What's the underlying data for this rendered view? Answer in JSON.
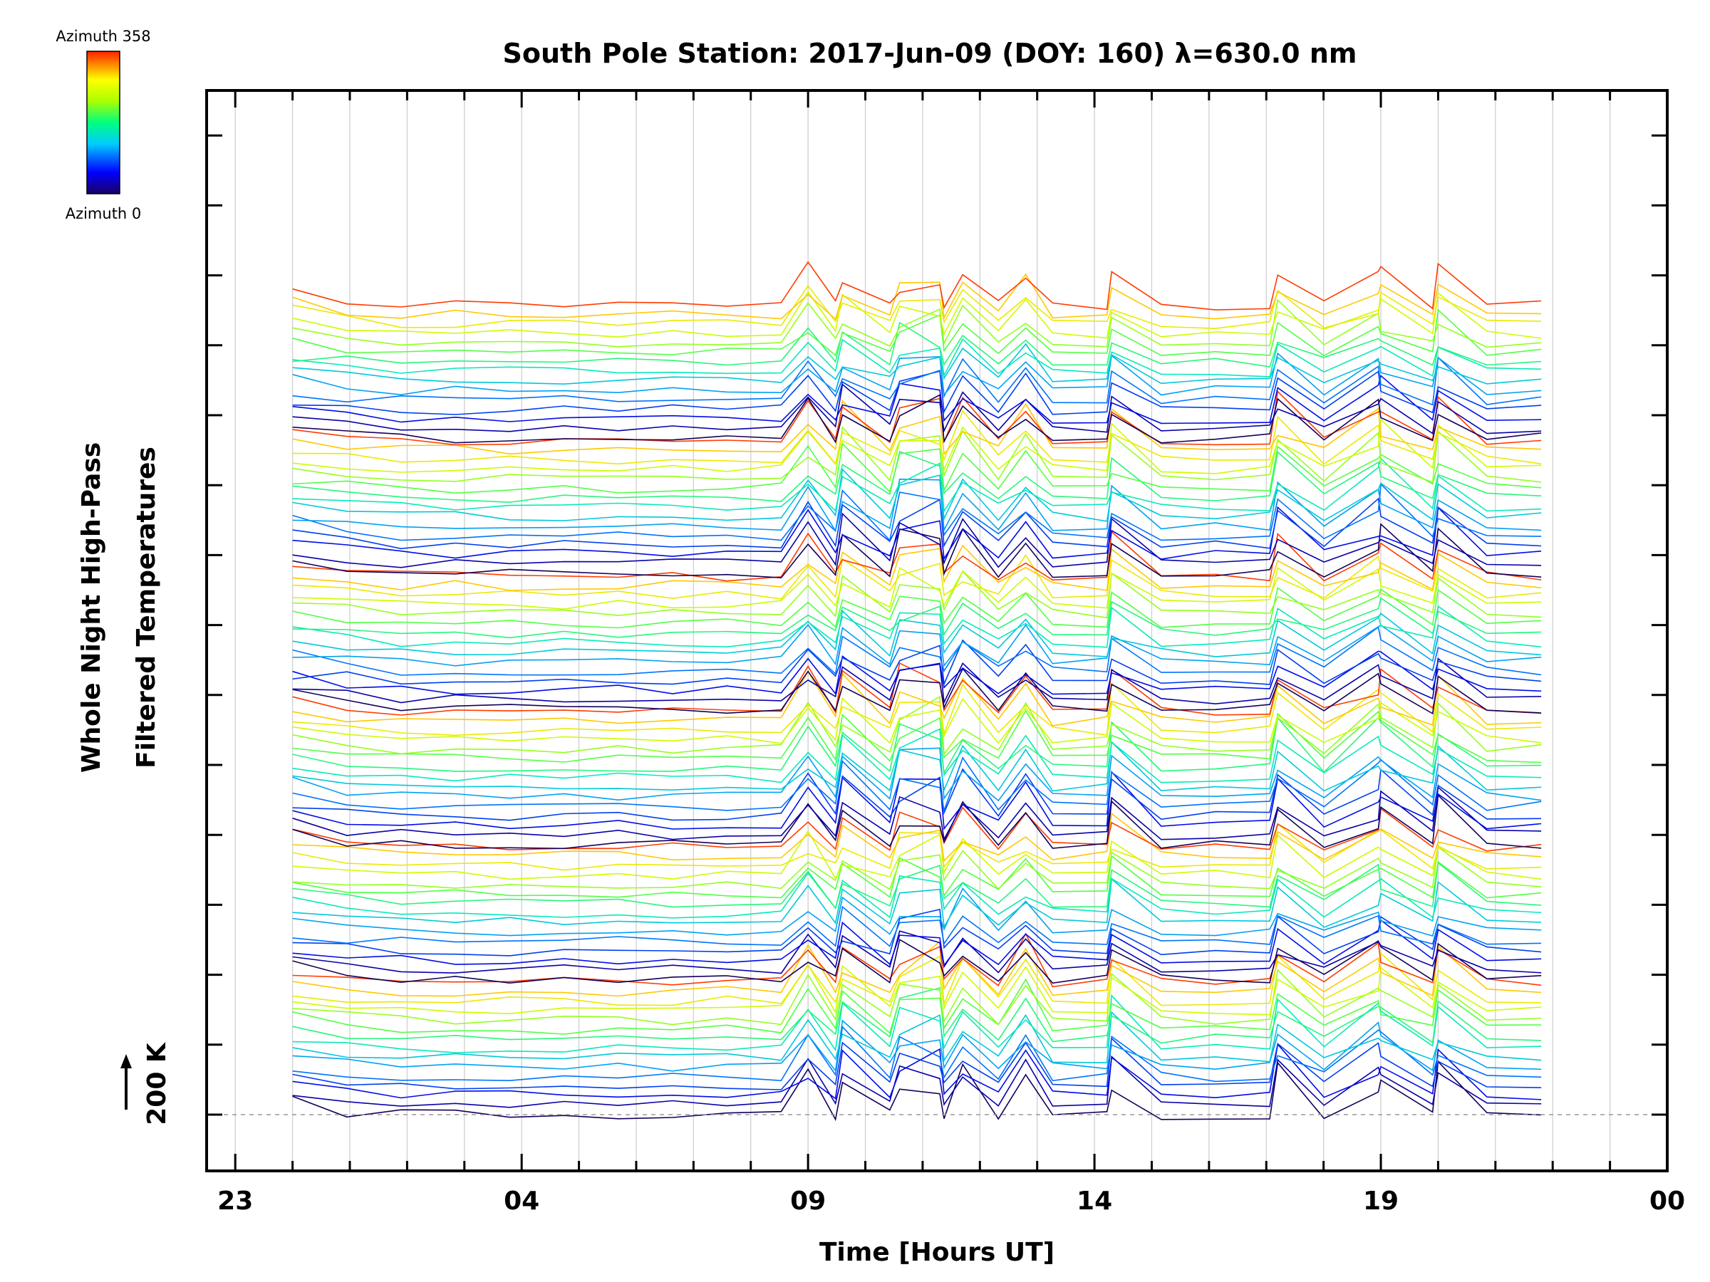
{
  "chart_data": {
    "type": "line",
    "title": "South Pole Station: 2017-Jun-09 (DOY: 160) λ=630.0 nm",
    "xlabel": "Time [Hours UT]",
    "ylabel_line1": "Whole Night High-Pass",
    "ylabel_line2": "Filtered Temperatures",
    "scale_label": "200 K",
    "x_tick_labels": [
      "23",
      "04",
      "09",
      "14",
      "19",
      "00"
    ],
    "x_tick_hours": [
      23,
      28,
      33,
      38,
      43,
      48
    ],
    "xlim_hours": [
      22.5,
      48.0
    ],
    "data_range_hours": [
      24.0,
      45.8
    ],
    "grid": "vertical",
    "colorbar": {
      "top_label": "Azimuth  358",
      "bottom_label": "Azimuth  0",
      "min": 0,
      "max": 358,
      "colormap": "rainbow"
    },
    "series_groups": 6,
    "series_per_group": 15,
    "azimuth_values": [
      0,
      24,
      48,
      72,
      96,
      120,
      143,
      167,
      191,
      215,
      239,
      263,
      287,
      311,
      358
    ],
    "samples_per_series": 24,
    "event_spike_hours": [
      33.0,
      33.6,
      34.6,
      35.3,
      35.7,
      36.8,
      38.3,
      41.2,
      43.0,
      44.0
    ],
    "colors": {
      "axes": "#000000",
      "grid": "#cccccc",
      "background": "#ffffff",
      "baseline": "#999999"
    }
  }
}
